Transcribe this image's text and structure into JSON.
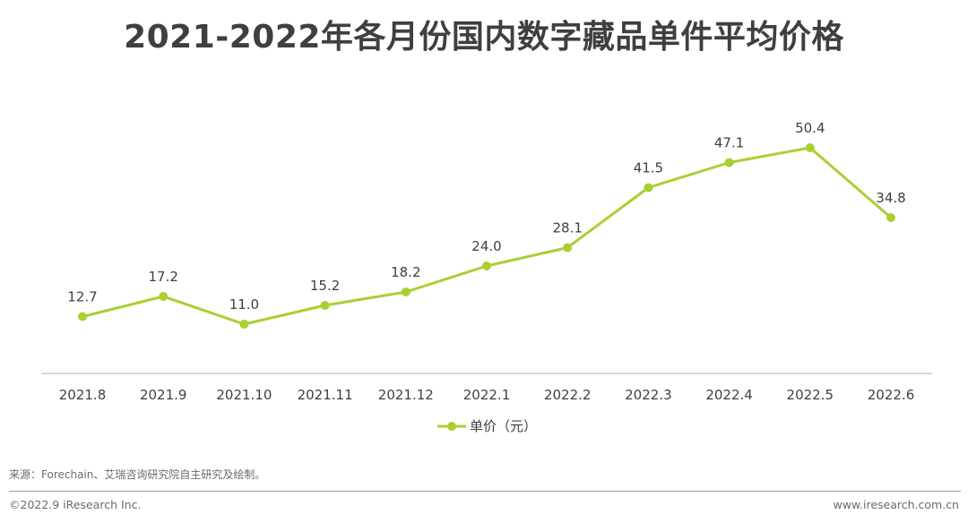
{
  "chart_data": {
    "type": "line",
    "title": "2021-2022年各月份国内数字藏品单件平均价格",
    "categories": [
      "2021.8",
      "2021.9",
      "2021.10",
      "2021.11",
      "2021.12",
      "2022.1",
      "2022.2",
      "2022.3",
      "2022.4",
      "2022.5",
      "2022.6"
    ],
    "series": [
      {
        "name": "单价（元）",
        "values": [
          12.7,
          17.2,
          11.0,
          15.2,
          18.2,
          24.0,
          28.1,
          41.5,
          47.1,
          50.4,
          34.8
        ],
        "value_labels": [
          "12.7",
          "17.2",
          "11.0",
          "15.2",
          "18.2",
          "24.0",
          "28.1",
          "41.5",
          "47.1",
          "50.4",
          "34.8"
        ],
        "color": "#a9d032"
      }
    ],
    "xlabel": "",
    "ylabel": "",
    "ylim": [
      0,
      60
    ],
    "grid": false,
    "legend_position": "bottom-center"
  },
  "source": "来源：Forechain、艾瑞咨询研究院自主研究及绘制。",
  "copyright": "©2022.9 iResearch Inc.",
  "website": "www.iresearch.com.cn",
  "colors": {
    "axis": "#cccccc",
    "text": "#3f3f3f"
  }
}
